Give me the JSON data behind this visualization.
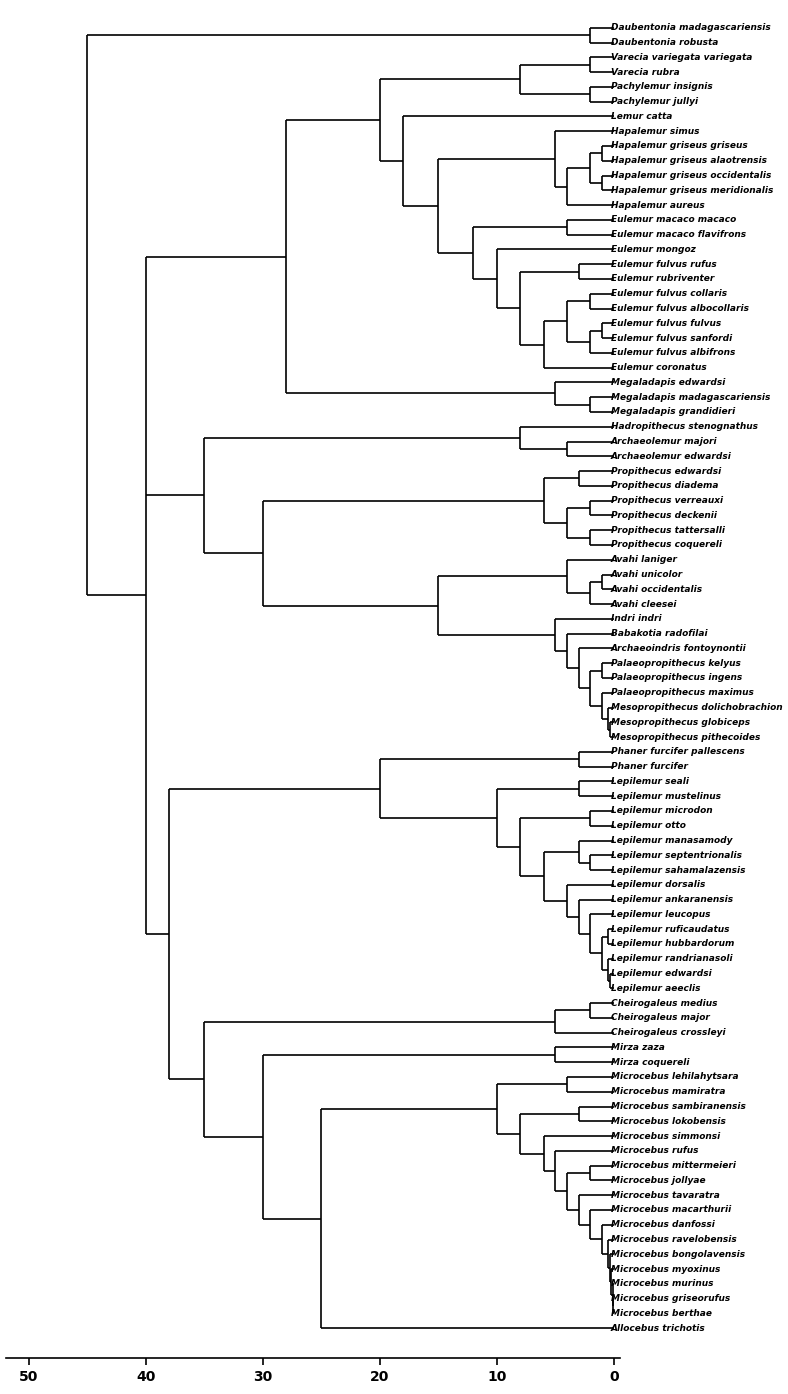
{
  "taxa": [
    "Daubentonia madagascariensis",
    "Daubentonia robusta",
    "Varecia variegata variegata",
    "Varecia rubra",
    "Pachylemur insignis",
    "Pachylemur jullyi",
    "Lemur catta",
    "Hapalemur simus",
    "Hapalemur griseus griseus",
    "Hapalemur griseus alaotrensis",
    "Hapalemur griseus occidentalis",
    "Hapalemur griseus meridionalis",
    "Hapalemur aureus",
    "Eulemur macaco macaco",
    "Eulemur macaco flavifrons",
    "Eulemur mongoz",
    "Eulemur fulvus rufus",
    "Eulemur rubriventer",
    "Eulemur fulvus collaris",
    "Eulemur fulvus albocollaris",
    "Eulemur fulvus fulvus",
    "Eulemur fulvus sanfordi",
    "Eulemur fulvus albifrons",
    "Eulemur coronatus",
    "Megaladapis edwardsi",
    "Megaladapis madagascariensis",
    "Megaladapis grandidieri",
    "Hadropithecus stenognathus",
    "Archaeolemur majori",
    "Archaeolemur edwardsi",
    "Propithecus edwardsi",
    "Propithecus diadema",
    "Propithecus verreauxi",
    "Propithecus deckenii",
    "Propithecus tattersalli",
    "Propithecus coquereli",
    "Avahi laniger",
    "Avahi unicolor",
    "Avahi occidentalis",
    "Avahi cleesei",
    "Indri indri",
    "Babakotia radofilai",
    "Archaeoindris fontoynontii",
    "Palaeopropithecus kelyus",
    "Palaeopropithecus ingens",
    "Palaeopropithecus maximus",
    "Mesopropithecus dolichobrachion",
    "Mesopropithecus globiceps",
    "Mesopropithecus pithecoides",
    "Phaner furcifer pallescens",
    "Phaner furcifer",
    "Lepilemur seali",
    "Lepilemur mustelinus",
    "Lepilemur microdon",
    "Lepilemur otto",
    "Lepilemur manasamody",
    "Lepilemur septentrionalis",
    "Lepilemur sahamalazensis",
    "Lepilemur dorsalis",
    "Lepilemur ankaranensis",
    "Lepilemur leucopus",
    "Lepilemur ruficaudatus",
    "Lepilemur hubbardorum",
    "Lepilemur randrianasoli",
    "Lepilemur edwardsi",
    "Lepilemur aeeclis",
    "Cheirogaleus medius",
    "Cheirogaleus major",
    "Cheirogaleus crossleyi",
    "Mirza zaza",
    "Mirza coquereli",
    "Microcebus lehilahytsara",
    "Microcebus mamiratra",
    "Microcebus sambiranensis",
    "Microcebus lokobensis",
    "Microcebus simmonsi",
    "Microcebus rufus",
    "Microcebus mittermeieri",
    "Microcebus jollyae",
    "Microcebus tavaratra",
    "Microcebus macarthurii",
    "Microcebus danfossi",
    "Microcebus ravelobensis",
    "Microcebus bongolavensis",
    "Microcebus myoxinus",
    "Microcebus murinus",
    "Microcebus griseorufus",
    "Microcebus berthae",
    "Allocebus trichotis"
  ],
  "line_color": "#000000",
  "background_color": "#ffffff",
  "font_size": 6.5,
  "line_width": 1.2,
  "scale_ticks": [
    50,
    40,
    30,
    20,
    10,
    0
  ]
}
